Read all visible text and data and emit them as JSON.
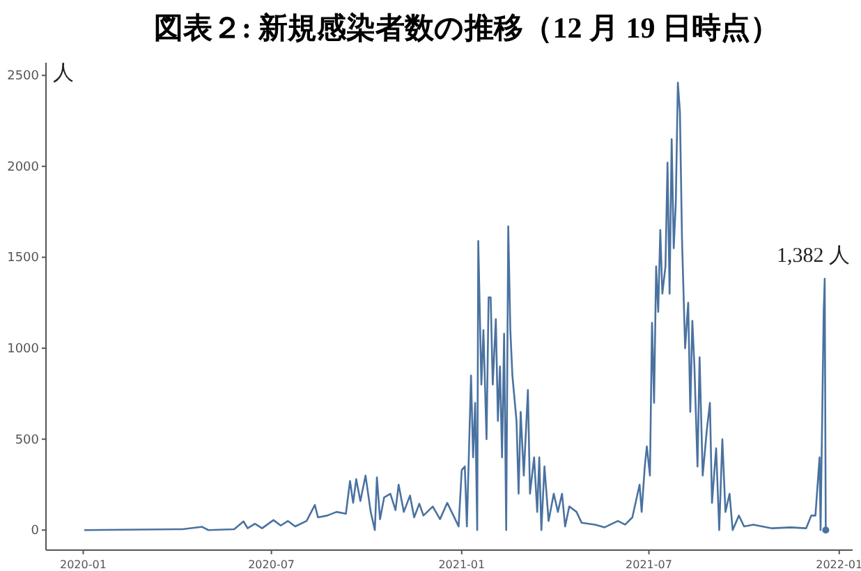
{
  "chart_data": {
    "type": "line",
    "title": "図表２: 新規感染者数の推移（12 月 19 日時点）",
    "ylabel": "人",
    "xlim": [
      "2019-11-26",
      "2022-01-14"
    ],
    "ylim": [
      -110,
      2570
    ],
    "xticks": [
      {
        "value": "2020-01-01",
        "label": "2020-01"
      },
      {
        "value": "2020-07-01",
        "label": "2020-07"
      },
      {
        "value": "2021-01-01",
        "label": "2021-01"
      },
      {
        "value": "2021-07-01",
        "label": "2021-07"
      },
      {
        "value": "2022-01-01",
        "label": "2022-01"
      }
    ],
    "yticks": [
      0,
      500,
      1000,
      1500,
      2000,
      2500
    ],
    "annotations": [
      {
        "text": "1,382 人",
        "x": "2021-12-18",
        "y": 1382
      }
    ],
    "series": [
      {
        "type": "line",
        "color": "#4a72a0",
        "x": [
          "2020-01-02",
          "2020-04-06",
          "2020-04-25",
          "2020-05-01",
          "2020-05-26",
          "2020-06-04",
          "2020-06-08",
          "2020-06-15",
          "2020-06-22",
          "2020-07-03",
          "2020-07-10",
          "2020-07-17",
          "2020-07-24",
          "2020-08-04",
          "2020-08-12",
          "2020-08-15",
          "2020-08-24",
          "2020-09-02",
          "2020-09-11",
          "2020-09-15",
          "2020-09-18",
          "2020-09-21",
          "2020-09-25",
          "2020-09-30",
          "2020-10-05",
          "2020-10-09",
          "2020-10-11",
          "2020-10-14",
          "2020-10-18",
          "2020-10-24",
          "2020-10-29",
          "2020-11-01",
          "2020-11-06",
          "2020-11-12",
          "2020-11-16",
          "2020-11-21",
          "2020-11-25",
          "2020-12-04",
          "2020-12-11",
          "2020-12-18",
          "2020-12-24",
          "2020-12-29",
          "2021-01-01",
          "2021-01-04",
          "2021-01-06",
          "2021-01-10",
          "2021-01-12",
          "2021-01-14",
          "2021-01-16",
          "2021-01-17",
          "2021-01-20",
          "2021-01-22",
          "2021-01-25",
          "2021-01-27",
          "2021-01-29",
          "2021-01-31",
          "2021-02-03",
          "2021-02-05",
          "2021-02-07",
          "2021-02-09",
          "2021-02-11",
          "2021-02-13",
          "2021-02-15",
          "2021-02-17",
          "2021-02-19",
          "2021-02-23",
          "2021-02-25",
          "2021-02-27",
          "2021-03-02",
          "2021-03-06",
          "2021-03-08",
          "2021-03-12",
          "2021-03-15",
          "2021-03-17",
          "2021-03-19",
          "2021-03-22",
          "2021-03-26",
          "2021-03-31",
          "2021-04-04",
          "2021-04-08",
          "2021-04-11",
          "2021-04-15",
          "2021-04-22",
          "2021-04-27",
          "2021-05-10",
          "2021-05-19",
          "2021-06-01",
          "2021-06-08",
          "2021-06-15",
          "2021-06-22",
          "2021-06-24",
          "2021-06-27",
          "2021-06-29",
          "2021-07-02",
          "2021-07-04",
          "2021-07-06",
          "2021-07-08",
          "2021-07-10",
          "2021-07-12",
          "2021-07-14",
          "2021-07-17",
          "2021-07-19",
          "2021-07-21",
          "2021-07-23",
          "2021-07-25",
          "2021-07-27",
          "2021-07-29",
          "2021-07-31",
          "2021-08-02",
          "2021-08-05",
          "2021-08-08",
          "2021-08-10",
          "2021-08-12",
          "2021-08-14",
          "2021-08-17",
          "2021-08-19",
          "2021-08-22",
          "2021-08-26",
          "2021-08-29",
          "2021-08-31",
          "2021-09-04",
          "2021-09-07",
          "2021-09-10",
          "2021-09-13",
          "2021-09-17",
          "2021-09-20",
          "2021-09-26",
          "2021-10-01",
          "2021-10-10",
          "2021-10-28",
          "2021-11-15",
          "2021-11-30",
          "2021-12-05",
          "2021-12-09",
          "2021-12-13",
          "2021-12-14",
          "2021-12-17",
          "2021-12-18",
          "2021-12-19"
        ],
        "values": [
          0,
          5,
          18,
          0,
          5,
          48,
          10,
          35,
          10,
          55,
          25,
          50,
          20,
          50,
          138,
          70,
          80,
          100,
          90,
          270,
          150,
          280,
          160,
          300,
          100,
          0,
          290,
          60,
          180,
          200,
          110,
          250,
          100,
          190,
          70,
          145,
          80,
          130,
          60,
          150,
          80,
          20,
          330,
          350,
          20,
          850,
          400,
          700,
          0,
          1590,
          800,
          1100,
          500,
          1280,
          1280,
          800,
          1160,
          600,
          900,
          400,
          1080,
          0,
          1670,
          1100,
          850,
          600,
          200,
          650,
          300,
          770,
          200,
          400,
          100,
          400,
          0,
          350,
          50,
          200,
          100,
          200,
          20,
          130,
          100,
          40,
          30,
          15,
          50,
          30,
          70,
          250,
          100,
          350,
          460,
          300,
          1140,
          700,
          1450,
          1200,
          1650,
          1300,
          1450,
          2020,
          1300,
          2150,
          1550,
          1800,
          2460,
          2300,
          1600,
          1000,
          1250,
          650,
          1150,
          900,
          350,
          950,
          300,
          550,
          700,
          150,
          450,
          0,
          500,
          100,
          200,
          0,
          80,
          20,
          30,
          10,
          15,
          10,
          80,
          80,
          400,
          0,
          1200,
          1382,
          0
        ]
      },
      {
        "type": "scatter",
        "color": "#4a72a0",
        "marker": "circle",
        "x": [
          "2021-12-19"
        ],
        "values": [
          0
        ]
      }
    ]
  }
}
